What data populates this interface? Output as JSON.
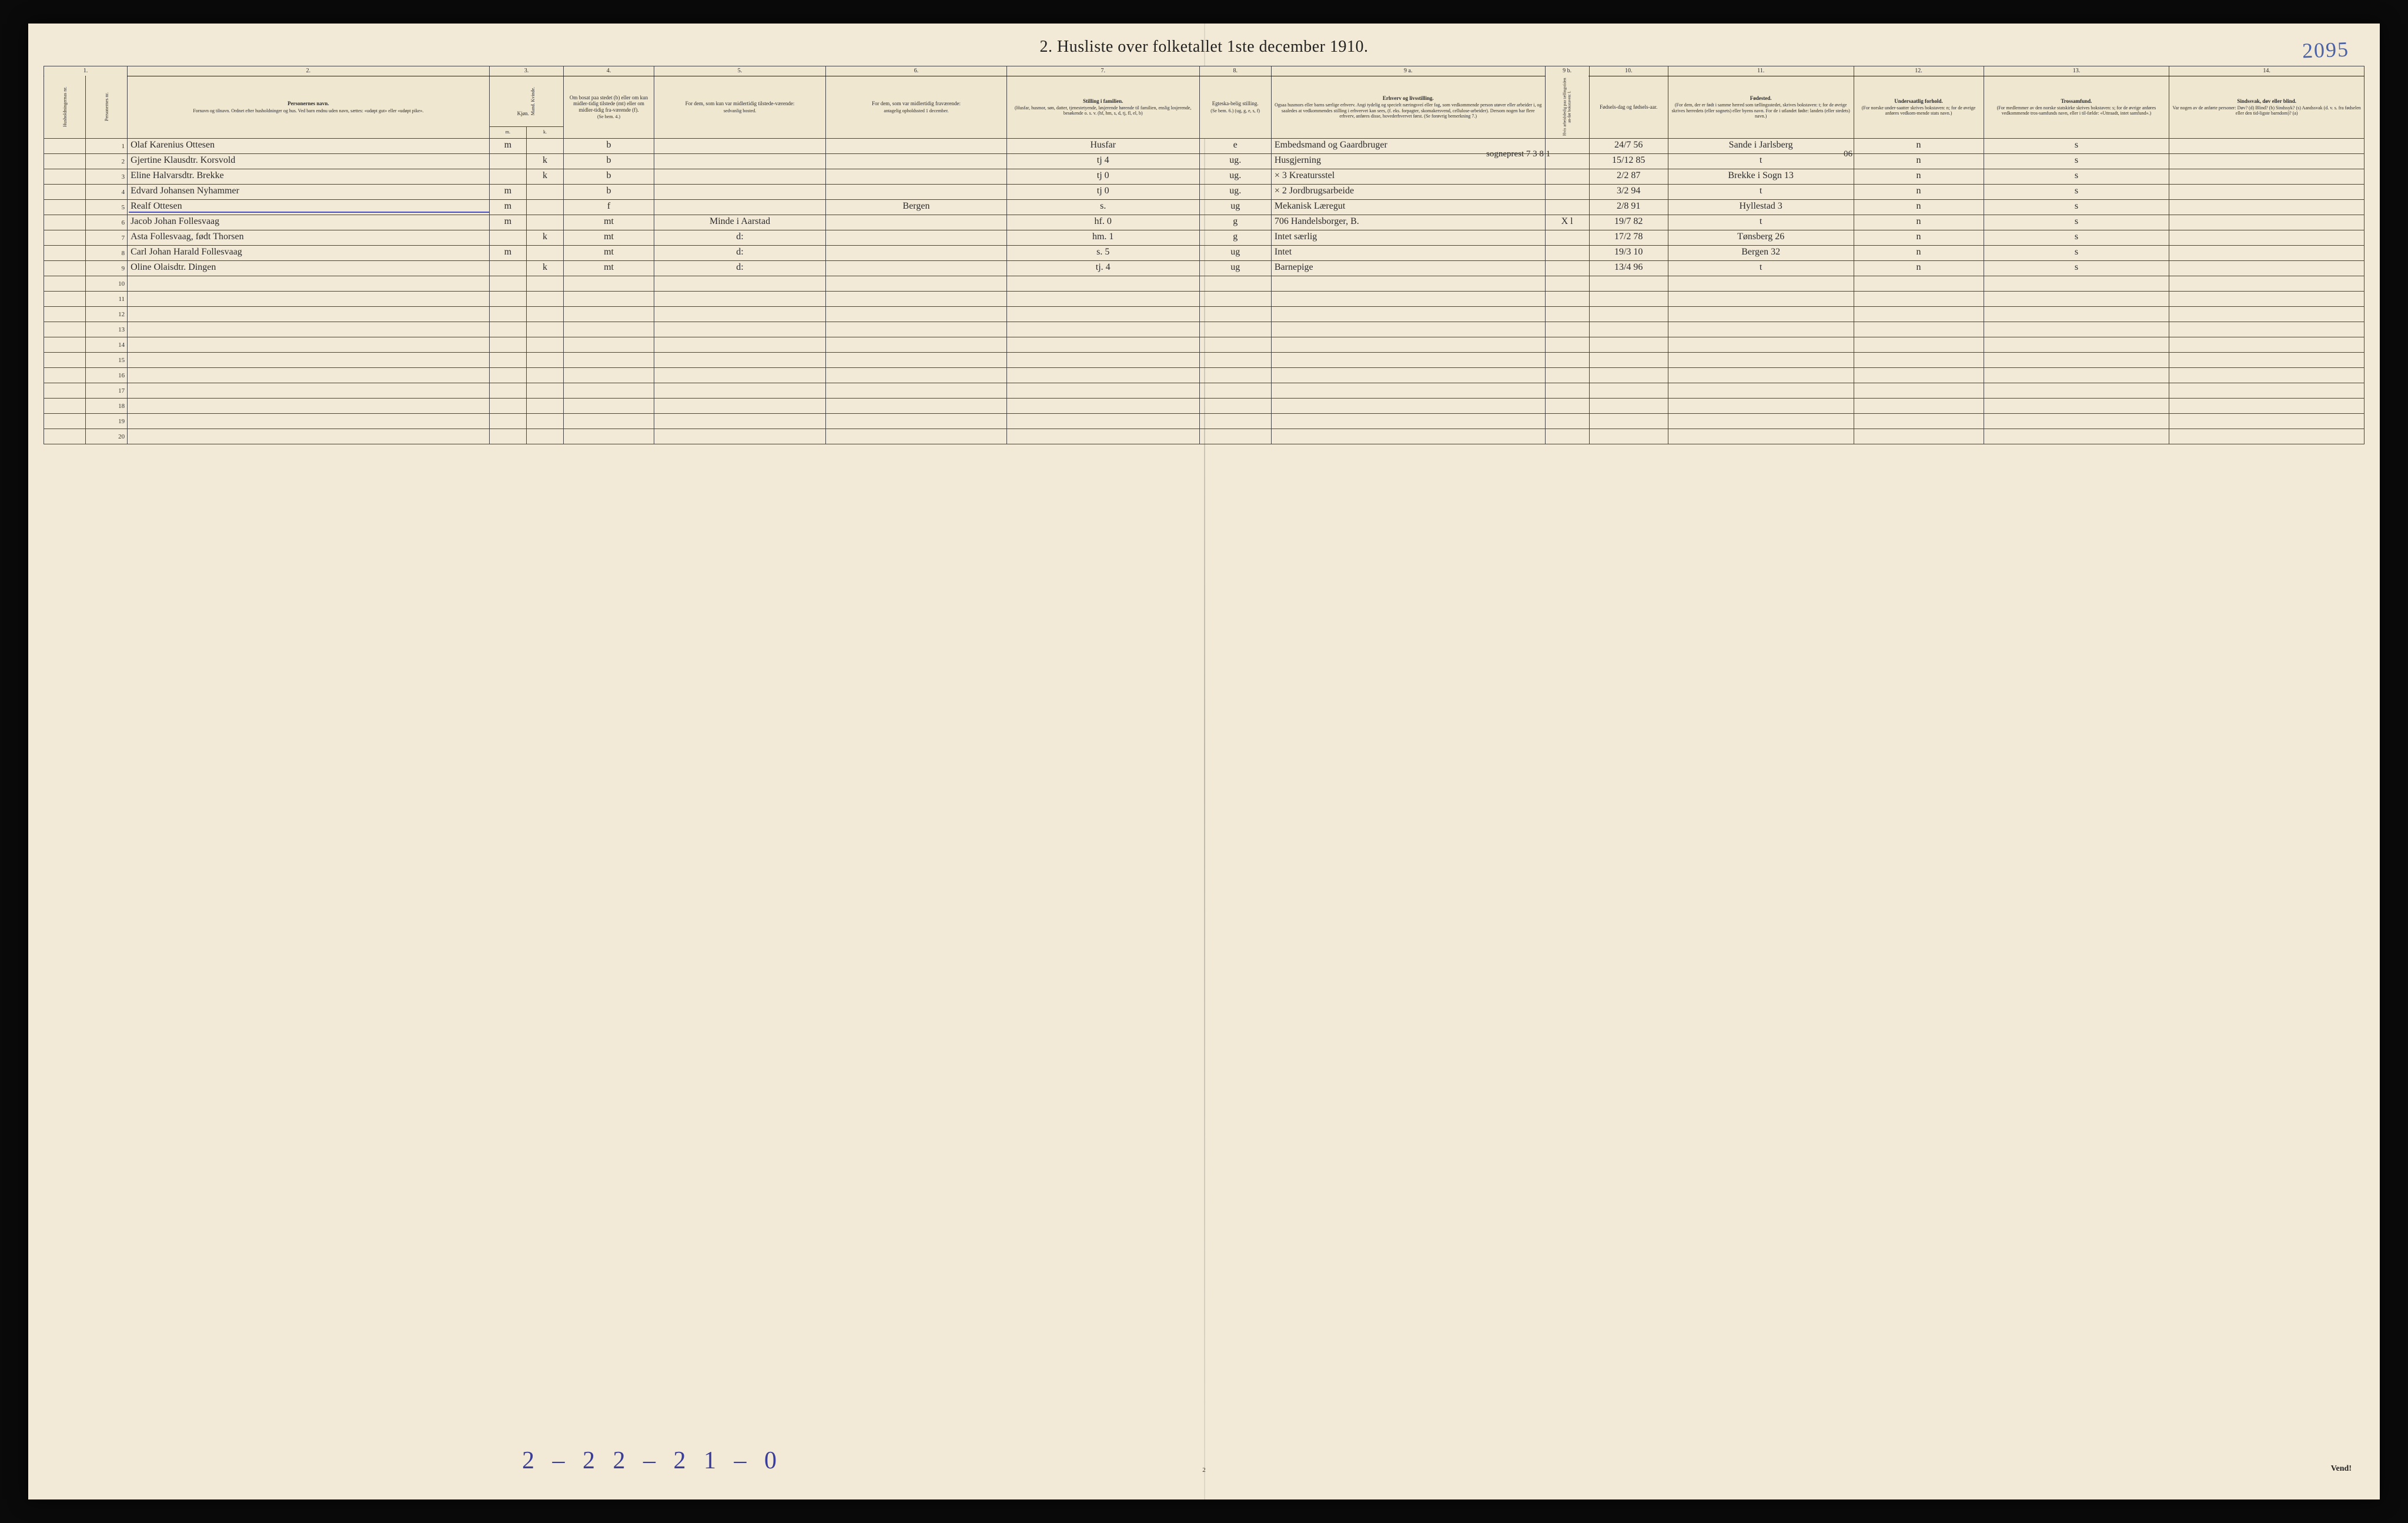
{
  "page": {
    "corner_number": "2095",
    "title": "2.  Husliste over folketallet 1ste december 1910.",
    "footer_annotation": "2 – 2   2 – 2   1 – 0",
    "page_num": "2",
    "vend": "Vend!",
    "background": "#f2ead7",
    "ink": "#2a2a2a",
    "hand_ink": "#2b2b2b",
    "blue_ink": "#3b3e99",
    "border": "#222222"
  },
  "extra": {
    "note_7381": "sogneprest    7 3 8 1",
    "note_06": "06"
  },
  "columns": {
    "nums": [
      "1.",
      "",
      "2.",
      "3.",
      "4.",
      "5.",
      "6.",
      "7.",
      "8.",
      "9 a.",
      "9 b.",
      "10.",
      "11.",
      "12.",
      "13.",
      "14."
    ],
    "h": [
      {
        "k": "c1",
        "t": "Husholdningernas nr."
      },
      {
        "k": "c1b",
        "t": "Personernes nr."
      },
      {
        "k": "c2",
        "t": "Personernes navn.",
        "s": "Fornavn og tilnavn.\nOrdnet efter husholdninger og hus.\nVed barn endnu uden navn, sættes: «udøpt gut» eller «udøpt pike»."
      },
      {
        "k": "c3",
        "t": "Kjøn.",
        "s": "Mand.  Kvinde."
      },
      {
        "k": "c4",
        "t": "Om bosat paa stedet (b) eller om kun midler-tidig tilstede (mt) eller om midler-tidig fra-værende (f).",
        "s": "(Se bem. 4.)"
      },
      {
        "k": "c5",
        "t": "For dem, som kun var midlertidig tilstede-værende:",
        "s": "sedvanlig bosted."
      },
      {
        "k": "c6",
        "t": "For dem, som var midlertidig fraværende:",
        "s": "antagelig opholdssted 1 december."
      },
      {
        "k": "c7",
        "t": "Stilling i familien.",
        "s": "(Husfar, husmor, søn, datter, tjenestetyende, løsjerende hørende til familien, enslig losjerende, besøkende o. s. v.\n(hf, hm, s, d, tj, fl, el, b)"
      },
      {
        "k": "c8",
        "t": "Egteska-belig stilling.",
        "s": "(Se bem. 6.)\n(ug, g, e, s, f)"
      },
      {
        "k": "c9a",
        "t": "Erhverv og livsstilling.",
        "s": "Ogsaa husmors eller barns særlige erhverv. Angi tydelig og specielt næringsveí eller fag, som vedkommende person utøver eller arbeider i, og saaledes at vedkommendes stilling i erhvervet kan sees, (f. eks. forpagter, skomakersvend, cellulose-arbeider). Dersom nogen har flere erhverv, anføres disse, hovederhvervet først.\n(Se forøvrig bemerkning 7.)"
      },
      {
        "k": "c9b",
        "t": "",
        "s": "Hvis arbeidsledig paa tællingstiden an-før bokstaven: l."
      },
      {
        "k": "c10",
        "t": "Fødsels-dag og fødsels-aar."
      },
      {
        "k": "c11",
        "t": "Fødested.",
        "s": "(For dem, der er født i samme herred som tællingsstedet, skrives bokstaven: t; for de øvrige skrives herredets (eller sognets) eller byens navn. For de i utlandet fødte: landets (eller stedets) navn.)"
      },
      {
        "k": "c12",
        "t": "Undersaatlig forhold.",
        "s": "(For norske under-saatter skrives bokstaven: n; for de øvrige anføres vedkom-mende stats navn.)"
      },
      {
        "k": "c13",
        "t": "Trossamfund.",
        "s": "(For medlemmer av den norske statskirke skrives bokstaven: s; for de øvrige anføres vedkommende tros-samfunds navn, eller i til-fælde: «Uttraadt, intet samfund».)"
      },
      {
        "k": "c14",
        "t": "Sindssvak, døv eller blind.",
        "s": "Var nogen av de anførte personer:\nDøv?      (d)\nBlind?    (b)\nSindssyk? (s)\nAandssvak (d. v. s. fra fødselen eller den tid-ligste barndom)? (a)"
      }
    ],
    "sub3": {
      "a": "m.",
      "b": "k."
    }
  },
  "rows": [
    {
      "n": "1",
      "name": "Olaf Karenius Ottesen",
      "m": "m",
      "k": "",
      "bmt": "b",
      "c5": "",
      "c6": "",
      "fam": "Husfar",
      "eg": "e",
      "erv": "Embedsmand og Gaardbruger",
      "l": "",
      "dob": "24/7 56",
      "fsted": "Sande i Jarlsberg",
      "und": "n",
      "tro": "s",
      "c14": ""
    },
    {
      "n": "2",
      "name": "Gjertine Klausdtr. Korsvold",
      "m": "",
      "k": "k",
      "bmt": "b",
      "c5": "",
      "c6": "",
      "fam": "tj       4",
      "eg": "ug.",
      "erv": "Husgjerning",
      "l": "",
      "dob": "15/12 85",
      "fsted": "t",
      "und": "n",
      "tro": "s",
      "c14": ""
    },
    {
      "n": "3",
      "name": "Eline Halvarsdtr. Brekke",
      "m": "",
      "k": "k",
      "bmt": "b",
      "c5": "",
      "c6": "",
      "fam": "tj       0",
      "eg": "ug.",
      "erv": "× 3   Kreatursstel",
      "l": "",
      "dob": "2/2 87",
      "fsted": "Brekke i Sogn 13",
      "und": "n",
      "tro": "s",
      "c14": ""
    },
    {
      "n": "4",
      "name": "Edvard Johansen Nyhammer",
      "m": "m",
      "k": "",
      "bmt": "b",
      "c5": "",
      "c6": "",
      "fam": "tj       0",
      "eg": "ug.",
      "erv": "× 2   Jordbrugsarbeide",
      "l": "",
      "dob": "3/2 94",
      "fsted": "t",
      "und": "n",
      "tro": "s",
      "c14": ""
    },
    {
      "n": "5",
      "name": "Realf Ottesen",
      "m": "m",
      "k": "",
      "bmt": "f",
      "c5": "",
      "c6": "Bergen",
      "fam": "s.",
      "eg": "ug",
      "erv": "Mekanisk Læregut",
      "l": "",
      "dob": "2/8 91",
      "fsted": "Hyllestad 3",
      "und": "n",
      "tro": "s",
      "c14": "",
      "ul": true
    },
    {
      "n": "6",
      "name": "Jacob Johan Follesvaag",
      "m": "m",
      "k": "",
      "bmt": "mt",
      "c5": "Minde i Aarstad",
      "c6": "",
      "fam": "hf.     0",
      "eg": "g",
      "erv": "706 Handelsborger, B.",
      "l": "X l",
      "dob": "19/7 82",
      "fsted": "t",
      "und": "n",
      "tro": "s",
      "c14": ""
    },
    {
      "n": "7",
      "name": "Asta Follesvaag, født Thorsen",
      "m": "",
      "k": "k",
      "bmt": "mt",
      "c5": "d:",
      "c6": "",
      "fam": "hm.    1",
      "eg": "g",
      "erv": "Intet særlig",
      "l": "",
      "dob": "17/2 78",
      "fsted": "Tønsberg 26",
      "und": "n",
      "tro": "s",
      "c14": ""
    },
    {
      "n": "8",
      "name": "Carl Johan Harald Follesvaag",
      "m": "m",
      "k": "",
      "bmt": "mt",
      "c5": "d:",
      "c6": "",
      "fam": "s.      5",
      "eg": "ug",
      "erv": "Intet",
      "l": "",
      "dob": "19/3 10",
      "fsted": "Bergen 32",
      "und": "n",
      "tro": "s",
      "c14": ""
    },
    {
      "n": "9",
      "name": "Oline Olaisdtr. Dingen",
      "m": "",
      "k": "k",
      "bmt": "mt",
      "c5": "d:",
      "c6": "",
      "fam": "tj.     4",
      "eg": "ug",
      "erv": "Barnepige",
      "l": "",
      "dob": "13/4 96",
      "fsted": "t",
      "und": "n",
      "tro": "s",
      "c14": ""
    }
  ],
  "empty_rows": [
    "10",
    "11",
    "12",
    "13",
    "14",
    "15",
    "16",
    "17",
    "18",
    "19",
    "20"
  ]
}
